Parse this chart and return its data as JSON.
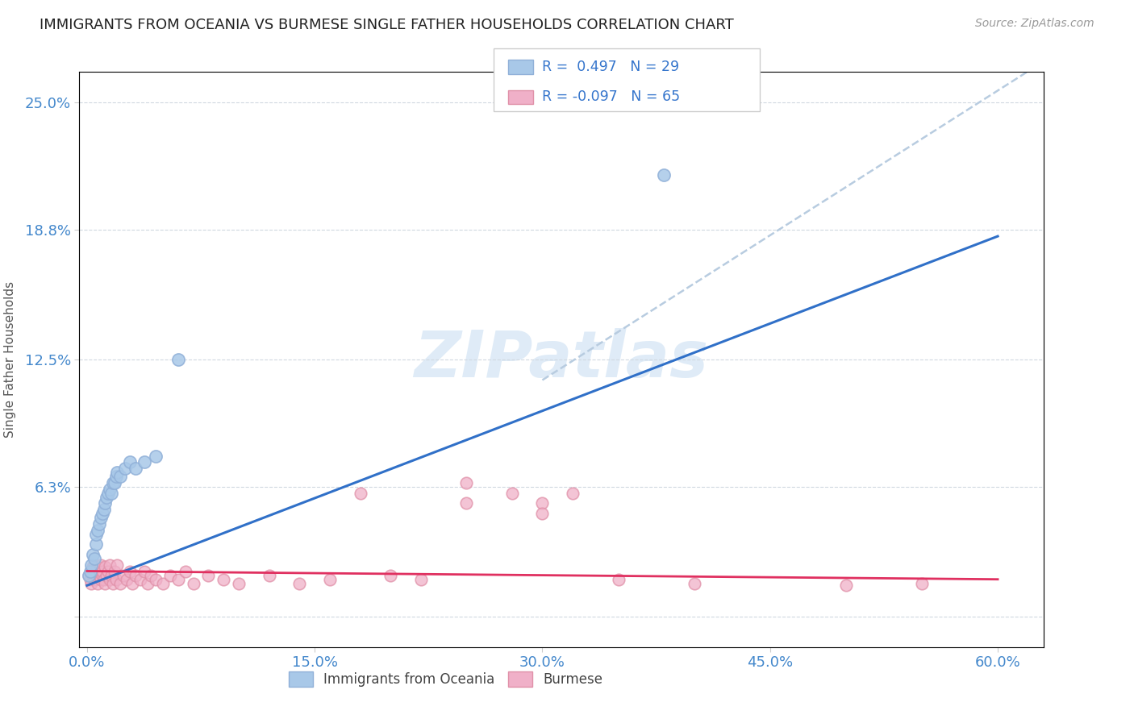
{
  "title": "IMMIGRANTS FROM OCEANIA VS BURMESE SINGLE FATHER HOUSEHOLDS CORRELATION CHART",
  "source": "Source: ZipAtlas.com",
  "xlabel_ticks": [
    "0.0%",
    "15.0%",
    "30.0%",
    "45.0%",
    "60.0%"
  ],
  "ylabel_ticks_right": [
    "25.0%",
    "18.8%",
    "12.5%",
    "6.3%"
  ],
  "xlabel_tick_vals": [
    0.0,
    0.15,
    0.3,
    0.45,
    0.6
  ],
  "ylabel_tick_vals": [
    0.0,
    0.063,
    0.125,
    0.188,
    0.25
  ],
  "xlim": [
    -0.005,
    0.63
  ],
  "ylim": [
    -0.015,
    0.265
  ],
  "watermark": "ZIPatlas",
  "legend_label1": "Immigrants from Oceania",
  "legend_label2": "Burmese",
  "R1": "0.497",
  "N1": "29",
  "R2": "-0.097",
  "N2": "65",
  "scatter_color1": "#a8c8e8",
  "scatter_edge1": "#90b0d8",
  "scatter_color2": "#f0b0c8",
  "scatter_edge2": "#e090a8",
  "trend_line1_color": "#3070c8",
  "trend_line2_color": "#e03060",
  "dashed_line_color": "#b8cce0",
  "background_color": "#ffffff",
  "title_color": "#222222",
  "right_tick_color": "#4488cc",
  "bottom_tick_color": "#4488cc",
  "ylabel_text": "Single Father Households",
  "oceania_x": [
    0.001,
    0.002,
    0.003,
    0.004,
    0.005,
    0.006,
    0.006,
    0.007,
    0.008,
    0.009,
    0.01,
    0.011,
    0.012,
    0.013,
    0.014,
    0.015,
    0.016,
    0.017,
    0.018,
    0.019,
    0.02,
    0.022,
    0.025,
    0.028,
    0.032,
    0.038,
    0.045,
    0.06,
    0.38
  ],
  "oceania_y": [
    0.02,
    0.022,
    0.025,
    0.03,
    0.028,
    0.035,
    0.04,
    0.042,
    0.045,
    0.048,
    0.05,
    0.052,
    0.055,
    0.058,
    0.06,
    0.062,
    0.06,
    0.065,
    0.065,
    0.068,
    0.07,
    0.068,
    0.072,
    0.075,
    0.072,
    0.075,
    0.078,
    0.125,
    0.215
  ],
  "burmese_x": [
    0.001,
    0.002,
    0.003,
    0.003,
    0.004,
    0.004,
    0.005,
    0.005,
    0.006,
    0.006,
    0.007,
    0.007,
    0.008,
    0.008,
    0.009,
    0.009,
    0.01,
    0.01,
    0.011,
    0.012,
    0.012,
    0.013,
    0.014,
    0.015,
    0.015,
    0.016,
    0.017,
    0.018,
    0.019,
    0.02,
    0.022,
    0.024,
    0.026,
    0.028,
    0.03,
    0.032,
    0.035,
    0.038,
    0.04,
    0.042,
    0.045,
    0.05,
    0.055,
    0.06,
    0.065,
    0.07,
    0.08,
    0.09,
    0.1,
    0.12,
    0.14,
    0.16,
    0.2,
    0.22,
    0.25,
    0.28,
    0.3,
    0.32,
    0.35,
    0.55,
    0.18,
    0.25,
    0.3,
    0.4,
    0.5
  ],
  "burmese_y": [
    0.02,
    0.018,
    0.022,
    0.016,
    0.02,
    0.024,
    0.018,
    0.025,
    0.02,
    0.022,
    0.016,
    0.024,
    0.02,
    0.022,
    0.018,
    0.025,
    0.02,
    0.022,
    0.018,
    0.024,
    0.016,
    0.02,
    0.022,
    0.018,
    0.025,
    0.02,
    0.016,
    0.022,
    0.018,
    0.025,
    0.016,
    0.02,
    0.018,
    0.022,
    0.016,
    0.02,
    0.018,
    0.022,
    0.016,
    0.02,
    0.018,
    0.016,
    0.02,
    0.018,
    0.022,
    0.016,
    0.02,
    0.018,
    0.016,
    0.02,
    0.016,
    0.018,
    0.02,
    0.018,
    0.065,
    0.06,
    0.055,
    0.06,
    0.018,
    0.016,
    0.06,
    0.055,
    0.05,
    0.016,
    0.015
  ],
  "blue_line_x": [
    0.0,
    0.6
  ],
  "blue_line_y": [
    0.015,
    0.185
  ],
  "pink_line_x": [
    0.0,
    0.6
  ],
  "pink_line_y": [
    0.022,
    0.018
  ],
  "dash_line_x": [
    0.3,
    0.63
  ],
  "dash_line_y": [
    0.115,
    0.27
  ]
}
